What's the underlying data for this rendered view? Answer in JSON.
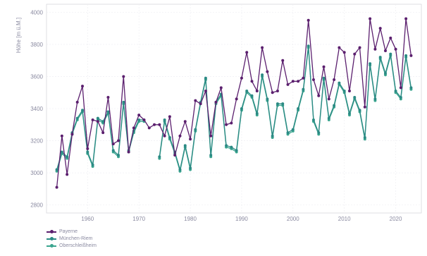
{
  "chart_data": {
    "type": "line",
    "title": "",
    "xlabel": "",
    "ylabel": "Höhe [m ü.M.]",
    "xlim": [
      1952,
      2025
    ],
    "ylim": [
      2750,
      4050
    ],
    "xticks": [
      1960,
      1970,
      1980,
      1990,
      2000,
      2010,
      2020
    ],
    "yticks": [
      2800,
      3000,
      3200,
      3400,
      3600,
      3800,
      4000
    ],
    "grid": true,
    "legend_position": "bottom-left",
    "x": [
      1954,
      1955,
      1956,
      1957,
      1958,
      1959,
      1960,
      1961,
      1962,
      1963,
      1964,
      1965,
      1966,
      1967,
      1968,
      1969,
      1970,
      1971,
      1972,
      1973,
      1974,
      1975,
      1976,
      1977,
      1978,
      1979,
      1980,
      1981,
      1982,
      1983,
      1984,
      1985,
      1986,
      1987,
      1988,
      1989,
      1990,
      1991,
      1992,
      1993,
      1994,
      1995,
      1996,
      1997,
      1998,
      1999,
      2000,
      2001,
      2002,
      2003,
      2004,
      2005,
      2006,
      2007,
      2008,
      2009,
      2010,
      2011,
      2012,
      2013,
      2014,
      2015,
      2016,
      2017,
      2018,
      2019,
      2020,
      2021,
      2022,
      2023
    ],
    "series": [
      {
        "name": "Payerne",
        "color": "#5b1f6e",
        "values": [
          2910,
          3230,
          2990,
          3240,
          3440,
          3540,
          3150,
          3330,
          3320,
          3250,
          3470,
          3180,
          3200,
          3600,
          3130,
          3280,
          3360,
          3330,
          3280,
          3300,
          3300,
          3230,
          3350,
          3110,
          3230,
          3320,
          3210,
          3450,
          3430,
          3510,
          3230,
          3440,
          3530,
          3300,
          3310,
          3460,
          3590,
          3750,
          3570,
          3510,
          3780,
          3630,
          3500,
          3510,
          3700,
          3550,
          3570,
          3570,
          3590,
          3950,
          3580,
          3480,
          3660,
          3460,
          3580,
          3780,
          3750,
          3510,
          3740,
          3780,
          3410,
          3960,
          3770,
          3900,
          3760,
          3840,
          3770,
          3530,
          3960,
          3730
        ]
      },
      {
        "name": "München-Riem",
        "color": "#2b8a84",
        "values": [
          3020,
          3130,
          3100,
          3250,
          3340,
          3390,
          3130,
          3050,
          3340,
          3320,
          3380,
          3140,
          3110,
          3440,
          3140,
          3260,
          3330,
          3330,
          null,
          null,
          3100,
          3330,
          3220,
          3130,
          3020,
          3170,
          3030,
          3270,
          3440,
          3590,
          3110,
          3440,
          3490,
          3170,
          3160,
          3140,
          3400,
          3510,
          3480,
          3370,
          3610,
          3460,
          3230,
          3430,
          3430,
          3250,
          3270,
          3400,
          3520,
          3790,
          3330,
          3250,
          3590,
          3340,
          3420,
          3560,
          3510,
          3370,
          3470,
          3390,
          3220,
          3680,
          3460,
          3720,
          3620,
          3740,
          3510,
          3470,
          3730,
          3530
        ]
      },
      {
        "name": "Oberschleißheim",
        "color": "#3aa58f",
        "values": [
          3010,
          3120,
          3090,
          3240,
          3330,
          3380,
          3120,
          3040,
          3330,
          3310,
          3370,
          3130,
          3100,
          3430,
          3130,
          3250,
          3320,
          3320,
          null,
          null,
          3090,
          3320,
          3210,
          3120,
          3010,
          3160,
          3020,
          3260,
          3430,
          3580,
          3100,
          3430,
          3480,
          3160,
          3150,
          3130,
          3390,
          3500,
          3470,
          3360,
          3600,
          3450,
          3220,
          3420,
          3420,
          3240,
          3260,
          3390,
          3510,
          3780,
          3320,
          3240,
          3580,
          3330,
          3410,
          3550,
          3500,
          3360,
          3460,
          3380,
          3210,
          3670,
          3450,
          3710,
          3610,
          3730,
          3500,
          3460,
          3720,
          3520
        ]
      }
    ]
  }
}
